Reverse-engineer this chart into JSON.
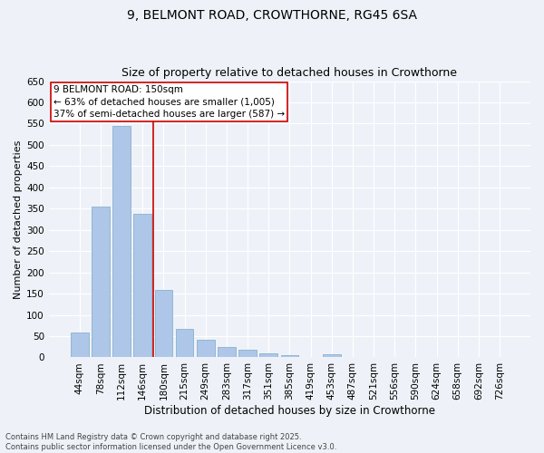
{
  "title": "9, BELMONT ROAD, CROWTHORNE, RG45 6SA",
  "subtitle": "Size of property relative to detached houses in Crowthorne",
  "xlabel": "Distribution of detached houses by size in Crowthorne",
  "ylabel": "Number of detached properties",
  "categories": [
    "44sqm",
    "78sqm",
    "112sqm",
    "146sqm",
    "180sqm",
    "215sqm",
    "249sqm",
    "283sqm",
    "317sqm",
    "351sqm",
    "385sqm",
    "419sqm",
    "453sqm",
    "487sqm",
    "521sqm",
    "556sqm",
    "590sqm",
    "624sqm",
    "658sqm",
    "692sqm",
    "726sqm"
  ],
  "values": [
    58,
    355,
    545,
    338,
    158,
    67,
    42,
    24,
    17,
    10,
    5,
    1,
    8,
    1,
    0,
    0,
    0,
    1,
    0,
    0,
    1
  ],
  "bar_color": "#aec6e8",
  "bar_edge_color": "#7aaac8",
  "vline_x_index": 3,
  "vline_color": "#cc0000",
  "annotation_line1": "9 BELMONT ROAD: 150sqm",
  "annotation_line2": "← 63% of detached houses are smaller (1,005)",
  "annotation_line3": "37% of semi-detached houses are larger (587) →",
  "annotation_box_color": "#ffffff",
  "annotation_box_edge_color": "#cc0000",
  "ylim": [
    0,
    650
  ],
  "yticks": [
    0,
    50,
    100,
    150,
    200,
    250,
    300,
    350,
    400,
    450,
    500,
    550,
    600,
    650
  ],
  "footer_text": "Contains HM Land Registry data © Crown copyright and database right 2025.\nContains public sector information licensed under the Open Government Licence v3.0.",
  "bg_color": "#eef2f8",
  "grid_color": "#ffffff",
  "title_fontsize": 10,
  "subtitle_fontsize": 9,
  "xlabel_fontsize": 8.5,
  "ylabel_fontsize": 8,
  "tick_fontsize": 7.5,
  "annotation_fontsize": 7.5,
  "footer_fontsize": 6
}
